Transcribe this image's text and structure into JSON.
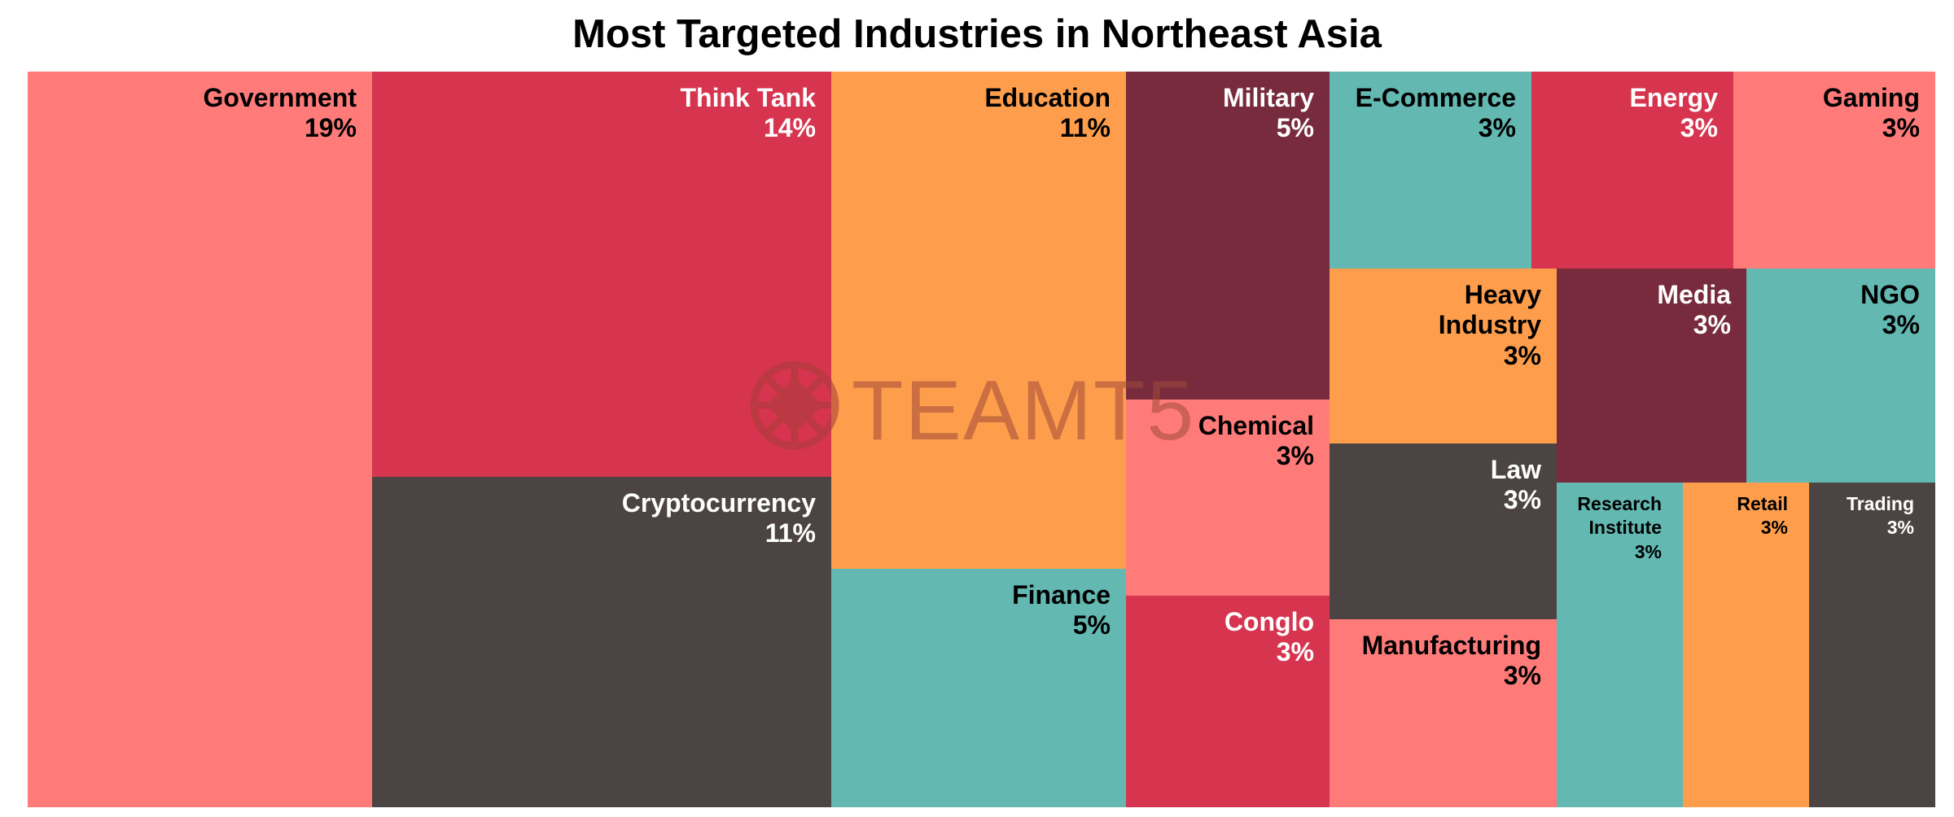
{
  "chart_data": {
    "type": "treemap",
    "title": "Most Targeted Industries in Northeast Asia",
    "watermark": "TEAMT5",
    "colors": {
      "salmon": "#ff7b7a",
      "crimson": "#d7354f",
      "orange": "#fe9e4d",
      "maroon": "#772b3d",
      "teal": "#63b8b2",
      "charcoal": "#4c4443"
    },
    "items": [
      {
        "label": "Government",
        "value": "19%",
        "color": "#ff7b7a",
        "text_color": "#000000"
      },
      {
        "label": "Think Tank",
        "value": "14%",
        "color": "#d7354f",
        "text_color": "#ffffff"
      },
      {
        "label": "Cryptocurrency",
        "value": "11%",
        "color": "#4c4443",
        "text_color": "#ffffff"
      },
      {
        "label": "Education",
        "value": "11%",
        "color": "#fe9e4d",
        "text_color": "#000000"
      },
      {
        "label": "Finance",
        "value": "5%",
        "color": "#63b8b2",
        "text_color": "#000000"
      },
      {
        "label": "Military",
        "value": "5%",
        "color": "#772b3d",
        "text_color": "#ffffff"
      },
      {
        "label": "Chemical",
        "value": "3%",
        "color": "#ff7b7a",
        "text_color": "#000000"
      },
      {
        "label": "Conglo",
        "value": "3%",
        "color": "#d7354f",
        "text_color": "#ffffff"
      },
      {
        "label": "E-Commerce",
        "value": "3%",
        "color": "#63b8b2",
        "text_color": "#000000"
      },
      {
        "label": "Energy",
        "value": "3%",
        "color": "#d7354f",
        "text_color": "#ffffff"
      },
      {
        "label": "Gaming",
        "value": "3%",
        "color": "#ff7b7a",
        "text_color": "#000000"
      },
      {
        "label": "Heavy Industry",
        "value": "3%",
        "color": "#fe9e4d",
        "text_color": "#000000"
      },
      {
        "label": "Law",
        "value": "3%",
        "color": "#4c4443",
        "text_color": "#ffffff"
      },
      {
        "label": "Manufacturing",
        "value": "3%",
        "color": "#ff7b7a",
        "text_color": "#000000"
      },
      {
        "label": "Media",
        "value": "3%",
        "color": "#772b3d",
        "text_color": "#ffffff"
      },
      {
        "label": "NGO",
        "value": "3%",
        "color": "#63b8b2",
        "text_color": "#000000"
      },
      {
        "label": "Research Institute",
        "value": "3%",
        "color": "#63b8b2",
        "text_color": "#000000"
      },
      {
        "label": "Retail",
        "value": "3%",
        "color": "#fe9e4d",
        "text_color": "#000000"
      },
      {
        "label": "Trading",
        "value": "3%",
        "color": "#4c4443",
        "text_color": "#ffffff"
      }
    ]
  }
}
